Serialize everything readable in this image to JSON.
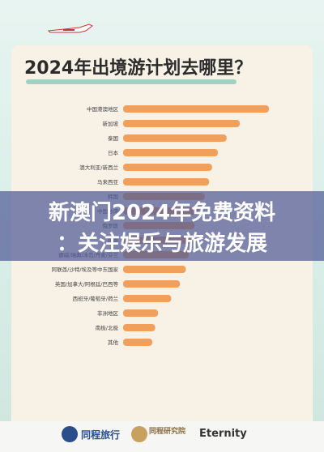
{
  "title": "2024年出境游计划去哪里？",
  "banner": {
    "line1": "新澳门2024年免费资料",
    "line2": "：关注娱乐与旅游发展"
  },
  "logos": {
    "brand1": "同程旅行",
    "brand2": "同程研究院",
    "brand3": "Eternity"
  },
  "colors": {
    "bar": "#f0a05a",
    "card": "#f7f1e6",
    "banner": "#505a96"
  },
  "chart_data": {
    "type": "bar",
    "orientation": "horizontal",
    "categories": [
      "中国港澳地区",
      "新加坡",
      "泰国",
      "日本",
      "澳大利亚/新西兰",
      "马来西亚",
      "韩国",
      "中国台湾",
      "俄罗斯",
      "越南",
      "挪威/瑞典/冰岛/丹麦/芬兰",
      "阿联酋/沙特/埃及等中东国家",
      "英国/加拿大/阿根廷/巴西等",
      "西班牙/葡萄牙/荷兰",
      "非洲地区",
      "南极/北极",
      "其他"
    ],
    "values": [
      100,
      80,
      71,
      65,
      61,
      59,
      56,
      52,
      49,
      47,
      45,
      43,
      39,
      33,
      24,
      22,
      20
    ],
    "xlim": [
      0,
      100
    ]
  }
}
